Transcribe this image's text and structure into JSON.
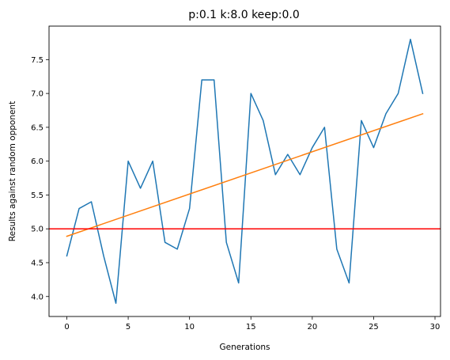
{
  "chart_data": {
    "type": "line",
    "title": "p:0.1 k:8.0 keep:0.0",
    "xlabel": "Generations",
    "ylabel": "Results against random opponent",
    "xlim": [
      -1.45,
      30.45
    ],
    "ylim": [
      3.705,
      7.995
    ],
    "x_ticks": [
      0,
      5,
      10,
      15,
      20,
      25,
      30
    ],
    "y_ticks": [
      4.0,
      4.5,
      5.0,
      5.5,
      6.0,
      6.5,
      7.0,
      7.5
    ],
    "grid": false,
    "series": [
      {
        "color": "#1f77b4",
        "x": [
          0,
          1,
          2,
          3,
          4,
          5,
          6,
          7,
          8,
          9,
          10,
          11,
          12,
          13,
          14,
          15,
          16,
          17,
          18,
          19,
          20,
          21,
          22,
          23,
          24,
          25,
          26,
          27,
          28,
          29
        ],
        "y": [
          4.6,
          5.3,
          5.4,
          4.6,
          3.9,
          6.0,
          5.6,
          6.0,
          4.8,
          4.7,
          5.3,
          7.2,
          7.2,
          4.8,
          4.2,
          7.0,
          6.6,
          5.8,
          6.1,
          5.8,
          6.2,
          6.5,
          4.7,
          4.2,
          6.6,
          6.2,
          6.7,
          7.0,
          7.8,
          7.0
        ]
      },
      {
        "color": "#ff7f0e",
        "x": [
          0,
          29
        ],
        "y": [
          4.89,
          6.7
        ]
      }
    ],
    "reference_lines": [
      {
        "orientation": "horizontal",
        "y": 5.0,
        "color": "#ff0000"
      }
    ]
  }
}
